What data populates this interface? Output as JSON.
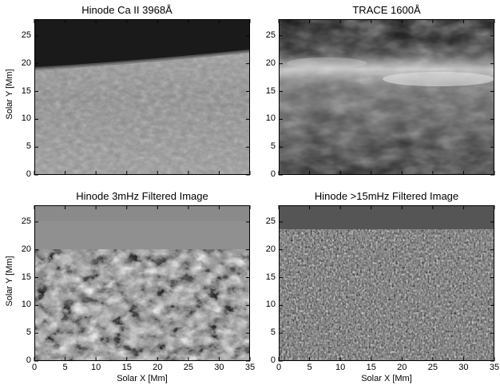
{
  "panels": [
    {
      "title": "Hinode Ca II 3968Å"
    },
    {
      "title": "TRACE 1600Å"
    },
    {
      "title": "Hinode 3mHz Filtered Image"
    },
    {
      "title": "Hinode >15mHz Filtered Image"
    }
  ],
  "axes": {
    "ylabel": "Solar Y [Mm]",
    "xlabel": "Solar X [Mm]",
    "y_ticks": [
      "0",
      "5",
      "10",
      "15",
      "20",
      "25"
    ],
    "x_ticks": [
      "0",
      "5",
      "10",
      "15",
      "20",
      "25",
      "30",
      "35"
    ]
  }
}
